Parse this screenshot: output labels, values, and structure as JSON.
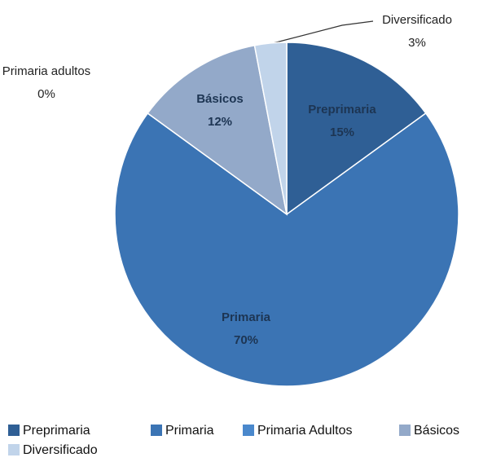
{
  "chart_data": {
    "type": "pie",
    "categories": [
      "Preprimaria",
      "Primaria",
      "Primaria adultos",
      "Básicos",
      "Diversificado"
    ],
    "values": [
      15,
      70,
      0,
      12,
      3
    ],
    "value_labels": [
      "15%",
      "70%",
      "0%",
      "12%",
      "3%"
    ],
    "colors": [
      "#2f5f95",
      "#3b74b4",
      "#4a88cc",
      "#93a9c9",
      "#c1d4ea"
    ],
    "legend": [
      "Preprimaria",
      "Primaria",
      "Primaria Adultos",
      "Básicos",
      "Diversificado"
    ]
  }
}
